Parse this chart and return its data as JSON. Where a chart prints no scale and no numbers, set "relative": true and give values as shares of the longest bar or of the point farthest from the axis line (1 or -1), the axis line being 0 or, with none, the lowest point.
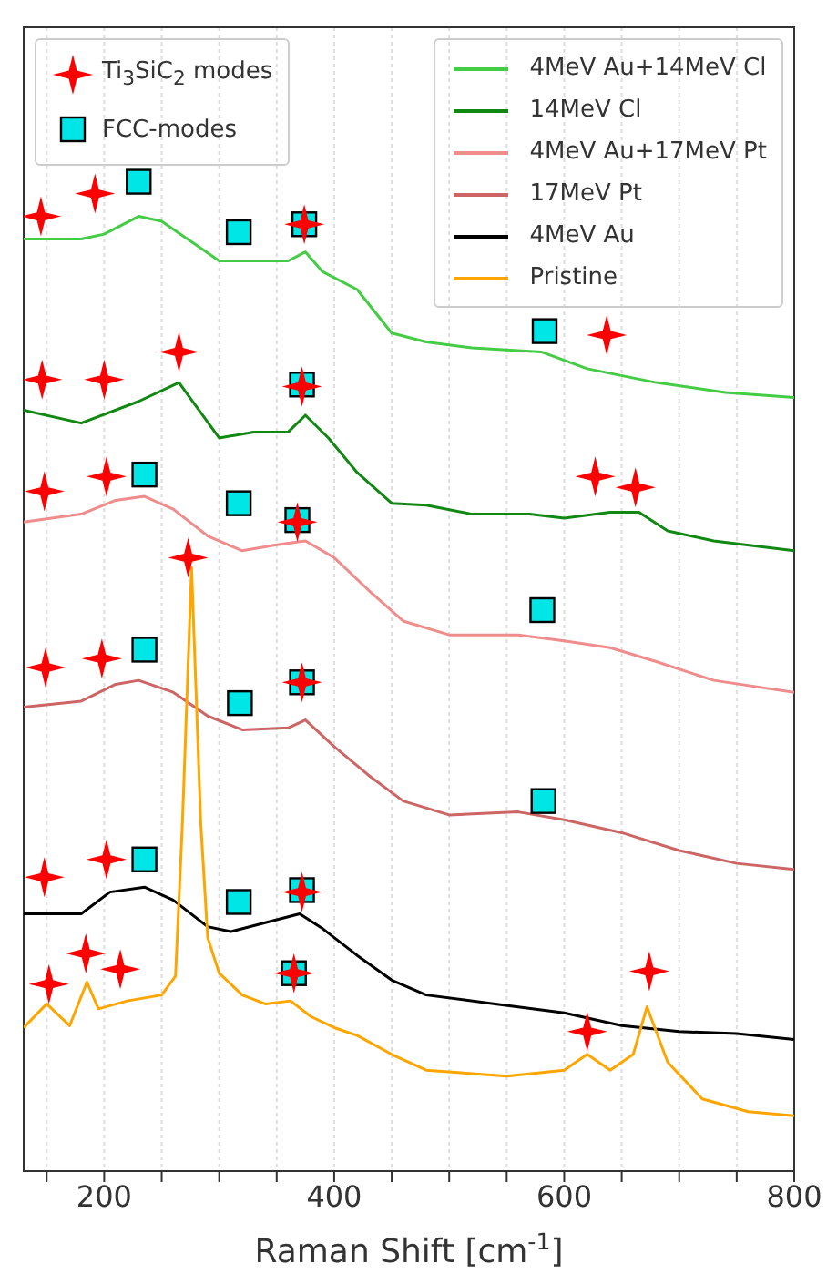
{
  "chart_data": {
    "type": "line",
    "relative": true,
    "xlabel": "Raman Shift [cm$^{-1}$]",
    "xlim": [
      130,
      800
    ],
    "xticks": [
      {
        "value": 150,
        "label": null
      },
      200,
      {
        "value": 250,
        "label": null
      },
      {
        "value": 300,
        "label": null
      },
      {
        "value": 350,
        "label": null
      },
      400,
      {
        "value": 450,
        "label": null
      },
      {
        "value": 500,
        "label": null
      },
      {
        "value": 550,
        "label": null
      },
      600,
      {
        "value": 650,
        "label": null
      },
      {
        "value": 700,
        "label": null
      },
      {
        "value": 750,
        "label": null
      },
      800
    ],
    "grid": "x",
    "legend": "top right",
    "tick_labels": "x",
    "series": [
      {
        "name": "4MeV Au+14MeV Cl",
        "color": "#44cc44",
        "x": [
          130,
          180,
          200,
          230,
          250,
          280,
          300,
          330,
          360,
          375,
          390,
          420,
          450,
          480,
          520,
          580,
          620,
          680,
          740,
          800
        ],
        "values": [
          0.942,
          0.942,
          0.947,
          0.965,
          0.96,
          0.936,
          0.92,
          0.92,
          0.92,
          0.929,
          0.909,
          0.891,
          0.847,
          0.838,
          0.832,
          0.828,
          0.811,
          0.797,
          0.787,
          0.782
        ]
      },
      {
        "name": "14MeV Cl",
        "color": "#118811",
        "x": [
          130,
          180,
          230,
          265,
          300,
          330,
          360,
          375,
          395,
          420,
          450,
          480,
          520,
          570,
          600,
          640,
          665,
          690,
          730,
          800
        ],
        "values": [
          0.769,
          0.756,
          0.778,
          0.797,
          0.741,
          0.747,
          0.747,
          0.764,
          0.741,
          0.706,
          0.675,
          0.673,
          0.664,
          0.664,
          0.66,
          0.666,
          0.666,
          0.647,
          0.637,
          0.627
        ]
      },
      {
        "name": "4MeV Au+17MeV Pt",
        "color": "#f08c8c",
        "x": [
          130,
          180,
          210,
          235,
          260,
          290,
          320,
          350,
          375,
          400,
          430,
          460,
          500,
          560,
          600,
          640,
          680,
          730,
          800
        ],
        "values": [
          0.656,
          0.664,
          0.678,
          0.682,
          0.669,
          0.642,
          0.627,
          0.633,
          0.637,
          0.62,
          0.587,
          0.556,
          0.542,
          0.542,
          0.536,
          0.529,
          0.515,
          0.496,
          0.484
        ]
      },
      {
        "name": "17MeV Pt",
        "color": "#cd6565",
        "x": [
          130,
          180,
          210,
          230,
          260,
          290,
          320,
          360,
          375,
          400,
          430,
          460,
          500,
          560,
          600,
          650,
          700,
          750,
          800
        ],
        "values": [
          0.469,
          0.475,
          0.492,
          0.496,
          0.484,
          0.46,
          0.446,
          0.448,
          0.456,
          0.429,
          0.4,
          0.374,
          0.36,
          0.363,
          0.355,
          0.342,
          0.324,
          0.311,
          0.305
        ]
      },
      {
        "name": "4MeV Au",
        "color": "#000000",
        "x": [
          130,
          180,
          205,
          235,
          260,
          290,
          310,
          340,
          370,
          390,
          420,
          450,
          480,
          540,
          600,
          650,
          700,
          750,
          800
        ],
        "values": [
          0.26,
          0.26,
          0.282,
          0.287,
          0.274,
          0.247,
          0.242,
          0.251,
          0.26,
          0.245,
          0.218,
          0.193,
          0.178,
          0.169,
          0.16,
          0.147,
          0.141,
          0.139,
          0.133
        ]
      },
      {
        "name": "Pristine",
        "color": "#ffa500",
        "x": [
          130,
          150,
          170,
          185,
          195,
          220,
          250,
          262,
          268,
          276,
          284,
          290,
          300,
          320,
          340,
          362,
          380,
          400,
          420,
          450,
          480,
          550,
          600,
          620,
          640,
          660,
          672,
          690,
          720,
          760,
          800
        ],
        "values": [
          0.145,
          0.169,
          0.147,
          0.191,
          0.164,
          0.172,
          0.178,
          0.197,
          0.351,
          0.61,
          0.351,
          0.236,
          0.2,
          0.178,
          0.169,
          0.172,
          0.156,
          0.145,
          0.137,
          0.118,
          0.102,
          0.096,
          0.102,
          0.118,
          0.102,
          0.118,
          0.166,
          0.11,
          0.073,
          0.06,
          0.056
        ]
      },
      {
        "name": "Ti$_{3}$SiC$_{2}$ modes",
        "type": "scatter",
        "marker": "star",
        "color": "#ff0000",
        "x": [
          145,
          192,
          374,
          637,
          146,
          200,
          265,
          372,
          148,
          202,
          368,
          273,
          627,
          662,
          149,
          198,
          372,
          148,
          202,
          372,
          152,
          184,
          214,
          365,
          620,
          674
        ],
        "values": [
          0.965,
          0.988,
          0.957,
          0.845,
          0.8,
          0.8,
          0.828,
          0.793,
          0.687,
          0.702,
          0.656,
          0.62,
          0.702,
          0.691,
          0.509,
          0.518,
          0.494,
          0.297,
          0.315,
          0.282,
          0.189,
          0.22,
          0.204,
          0.2,
          0.141,
          0.202
        ]
      },
      {
        "name": "FCC-modes",
        "type": "scatter",
        "marker": "square",
        "color": "#00e5e5",
        "x": [
          230,
          317,
          374,
          583,
          372,
          235,
          317,
          368,
          581,
          235,
          318,
          372,
          582,
          235,
          317,
          372,
          365
        ],
        "values": [
          1.0,
          0.949,
          0.957,
          0.849,
          0.795,
          0.704,
          0.675,
          0.658,
          0.567,
          0.527,
          0.473,
          0.494,
          0.374,
          0.315,
          0.272,
          0.284,
          0.2
        ]
      }
    ]
  }
}
